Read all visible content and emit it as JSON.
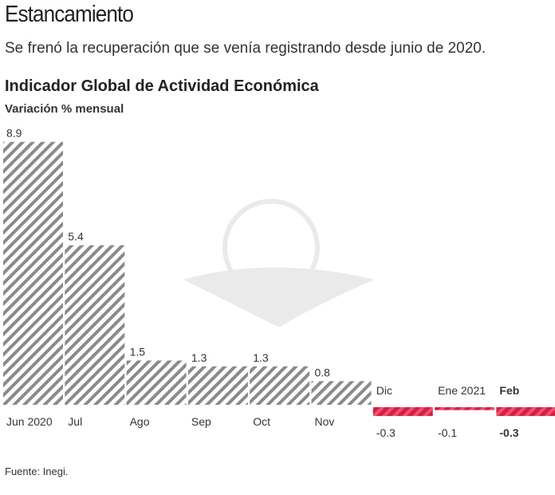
{
  "header": {
    "title": "Estancamiento",
    "subtitle": "Se frenó la recuperación que se venía registrando desde junio de 2020."
  },
  "footer": {
    "source": "Fuente: Inegi."
  },
  "chart_data": {
    "type": "bar",
    "title": "Indicador Global de Actividad Económica",
    "subtitle": "Variación % mensual",
    "categories": [
      "Jun 2020",
      "Jul",
      "Ago",
      "Sep",
      "Oct",
      "Nov",
      "Dic",
      "Ene 2021",
      "Feb"
    ],
    "values": [
      8.9,
      5.4,
      1.5,
      1.3,
      1.3,
      0.8,
      -0.3,
      -0.1,
      -0.3
    ],
    "value_labels": [
      "8.9",
      "5.4",
      "1.5",
      "1.3",
      "1.3",
      "0.8",
      "-0.3",
      "-0.1",
      "-0.3"
    ],
    "highlight_last_bold": true,
    "colors": {
      "positive": "#7a7a7a",
      "negative": "#d81e45"
    },
    "grid": false
  }
}
